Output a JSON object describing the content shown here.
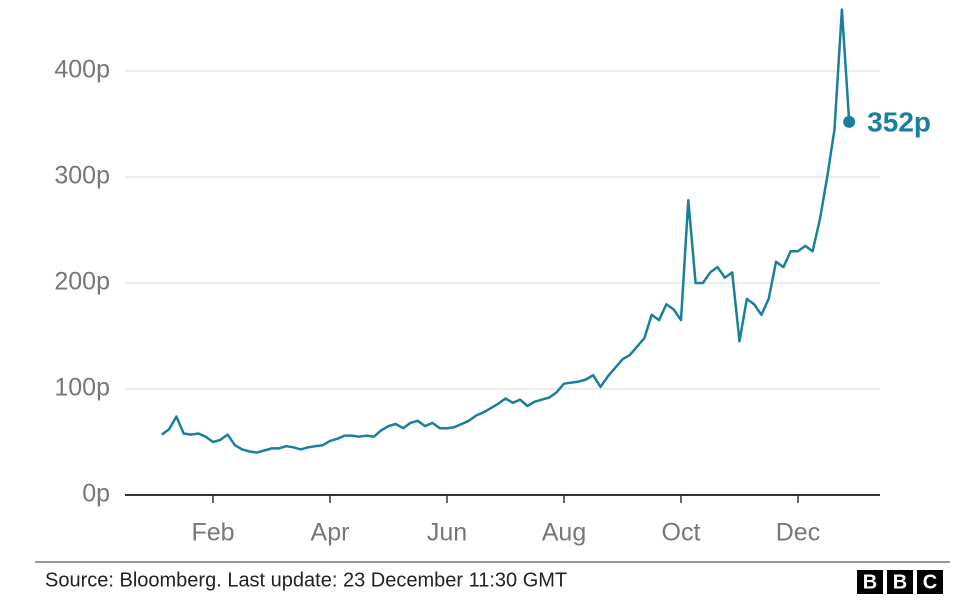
{
  "chart_data": {
    "type": "line",
    "categories": [
      null,
      null,
      null,
      null,
      null,
      null,
      null,
      "Feb",
      null,
      null,
      null,
      null,
      null,
      null,
      null,
      null,
      null,
      null,
      null,
      null,
      null,
      null,
      null,
      "Apr",
      null,
      null,
      null,
      null,
      null,
      null,
      null,
      null,
      null,
      null,
      null,
      null,
      null,
      null,
      null,
      "Jun",
      null,
      null,
      null,
      null,
      null,
      null,
      null,
      null,
      null,
      null,
      null,
      null,
      null,
      null,
      null,
      "Aug",
      null,
      null,
      null,
      null,
      null,
      null,
      null,
      null,
      null,
      null,
      null,
      null,
      null,
      null,
      null,
      "Oct",
      null,
      null,
      null,
      null,
      null,
      null,
      null,
      null,
      null,
      null,
      null,
      null,
      null,
      null,
      null,
      "Dec",
      null,
      null,
      null,
      null,
      null,
      null,
      null
    ],
    "values": [
      57,
      62,
      74,
      58,
      57,
      58,
      55,
      50,
      52,
      57,
      47,
      43,
      41,
      40,
      42,
      44,
      44,
      46,
      45,
      43,
      45,
      46,
      47,
      51,
      53,
      56,
      56,
      55,
      56,
      55,
      61,
      65,
      67,
      63,
      68,
      70,
      65,
      68,
      63,
      63,
      64,
      67,
      70,
      75,
      78,
      82,
      86,
      91,
      87,
      90,
      84,
      88,
      90,
      92,
      97,
      105,
      106,
      107,
      109,
      113,
      102,
      112,
      120,
      128,
      132,
      140,
      148,
      170,
      165,
      180,
      175,
      165,
      278,
      200,
      200,
      210,
      215,
      205,
      210,
      145,
      185,
      180,
      170,
      185,
      220,
      215,
      230,
      230,
      235,
      230,
      260,
      300,
      345,
      458,
      352
    ],
    "value_labels": [
      null,
      null,
      null,
      null,
      null,
      null,
      null,
      null,
      null,
      null,
      null,
      null,
      null,
      null,
      null,
      null,
      null,
      null,
      null,
      null,
      null,
      null,
      null,
      null,
      null,
      null,
      null,
      null,
      null,
      null,
      null,
      null,
      null,
      null,
      null,
      null,
      null,
      null,
      null,
      null,
      null,
      null,
      null,
      null,
      null,
      null,
      null,
      null,
      null,
      null,
      null,
      null,
      null,
      null,
      null,
      null,
      null,
      null,
      null,
      null,
      null,
      null,
      null,
      null,
      null,
      null,
      null,
      null,
      null,
      null,
      null,
      null,
      null,
      null,
      null,
      null,
      null,
      null,
      null,
      null,
      null,
      null,
      null,
      null,
      null,
      null,
      null,
      null,
      null,
      null,
      null,
      null,
      null,
      null,
      "352p"
    ],
    "color": "#1a7f9c",
    "ylim": [
      0,
      460
    ],
    "yticks": [
      {
        "value": 0,
        "label": "0p"
      },
      {
        "value": 100,
        "label": "100p"
      },
      {
        "value": 200,
        "label": "200p"
      },
      {
        "value": 300,
        "label": "300p"
      },
      {
        "value": 400,
        "label": "400p"
      }
    ],
    "grid": true,
    "source": "Source: Bloomberg. Last update: 23 December 11:30 GMT",
    "logo": [
      "B",
      "B",
      "C"
    ]
  }
}
